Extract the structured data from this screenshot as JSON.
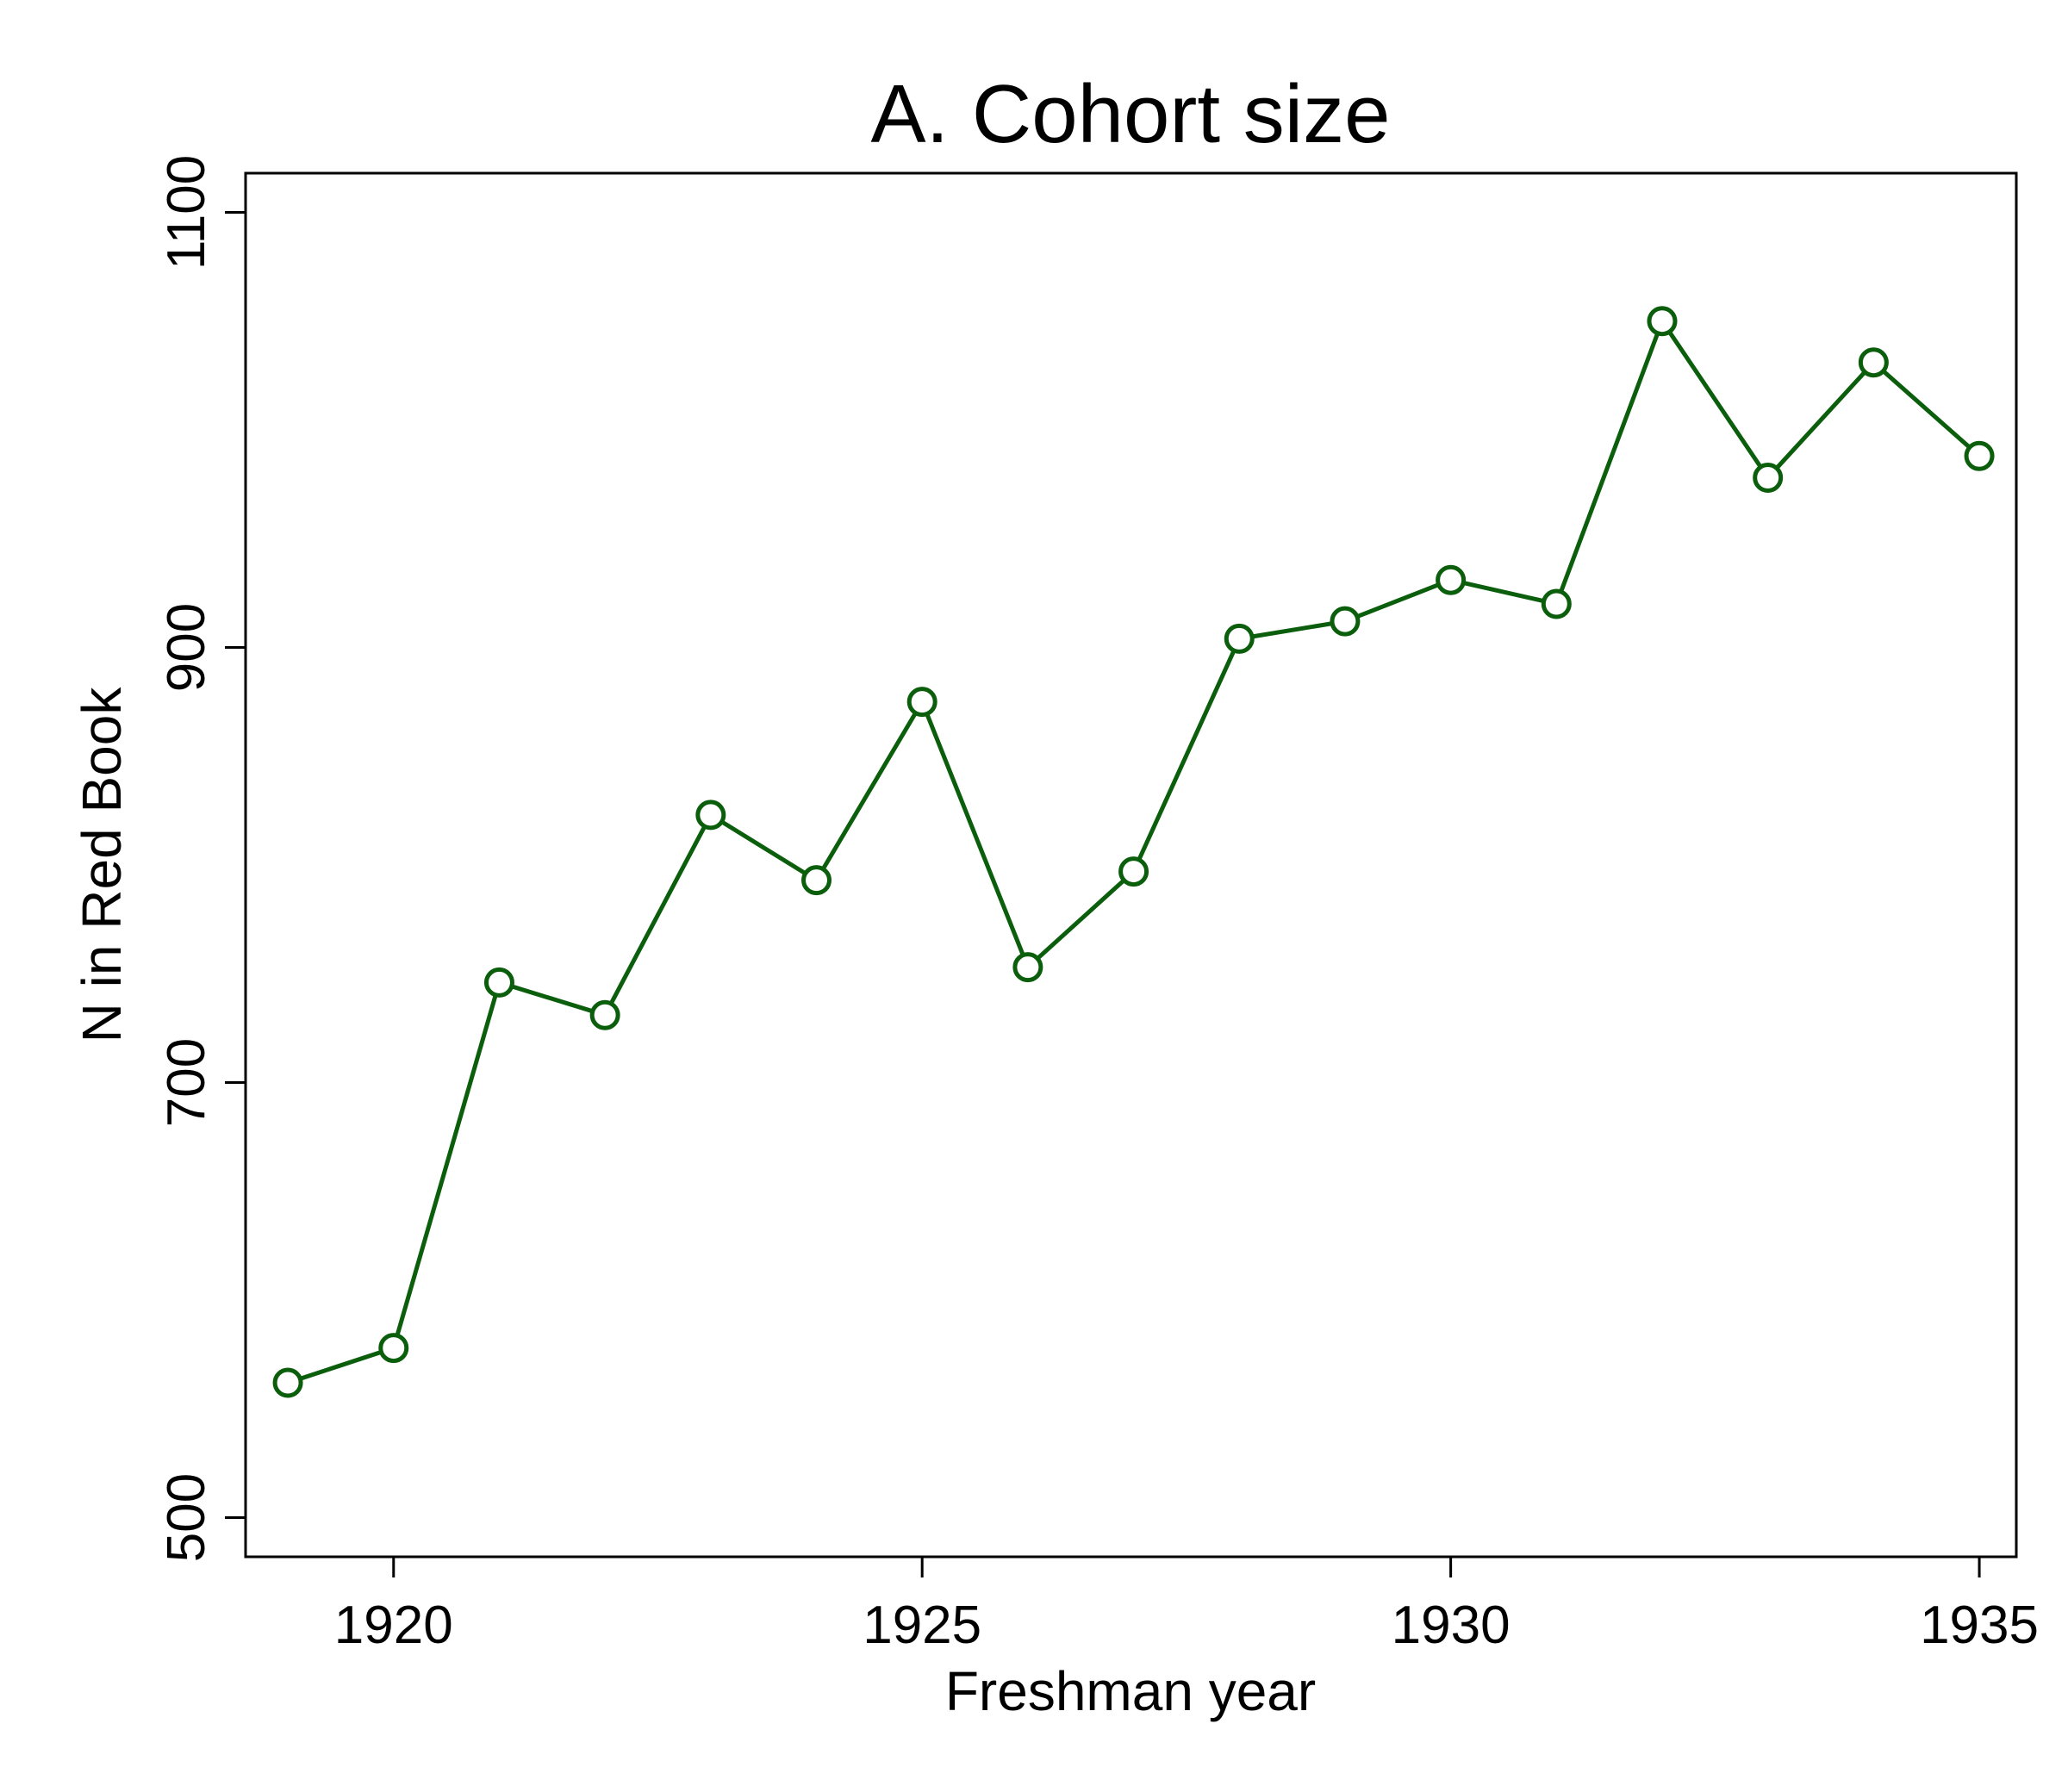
{
  "chart_data": {
    "type": "line",
    "title": "A. Cohort size",
    "xlabel": "Freshman year",
    "ylabel": "N in Red Book",
    "xlim": [
      1918.6,
      1935.35
    ],
    "ylim": [
      482,
      1118
    ],
    "xticks": [
      1920,
      1925,
      1930,
      1935
    ],
    "yticks": [
      500,
      700,
      900,
      1100
    ],
    "grid": false,
    "legend": "none",
    "series": [
      {
        "color": "#0b5e0b",
        "marker": "hollow-circle",
        "x": [
          1919,
          1920,
          1921,
          1922,
          1923,
          1924,
          1925,
          1926,
          1927,
          1928,
          1929,
          1930,
          1931,
          1932,
          1933,
          1934,
          1935
        ],
        "y": [
          562,
          578,
          746,
          731,
          823,
          793,
          875,
          753,
          797,
          904,
          912,
          931,
          920,
          1050,
          978,
          1031,
          988
        ]
      }
    ]
  }
}
